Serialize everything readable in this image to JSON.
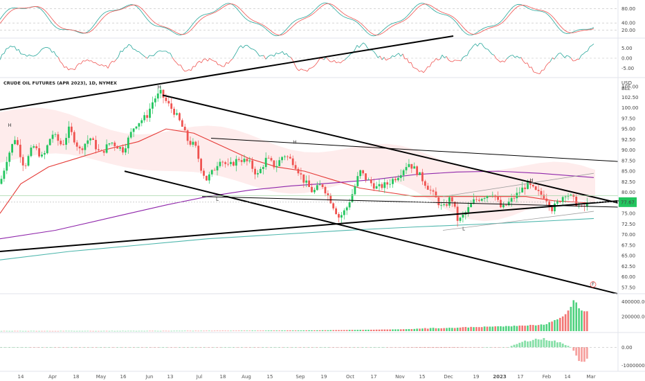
{
  "symbol_title": "CRUDE OIL FUTURES (APR 2023), 1D, NYMEX",
  "currency": "USD",
  "unit": "BLL",
  "current_price": "77.67",
  "marker_label": "F",
  "colors": {
    "up": "#26a69a",
    "up_candle": "#22c55e",
    "down": "#ef5350",
    "ma_fast": "#e53935",
    "ma_mid": "#8e24aa",
    "ma_slow": "#4db6ac",
    "trendline": "#000000",
    "cloud": "#fde2e2",
    "cloud_green": "#e3f5e6",
    "price_tag": "#22c55e"
  },
  "stoch_panel": {
    "ticks": [
      "80.00",
      "40.00",
      "20.00"
    ],
    "tick_values": [
      80,
      40,
      20
    ],
    "ylim": [
      0,
      100
    ]
  },
  "momentum_panel": {
    "ticks": [
      "5.00",
      "0.00",
      "-5.00"
    ],
    "tick_values": [
      5,
      0,
      -5
    ],
    "ylim": [
      -9,
      9
    ]
  },
  "volume_panel": {
    "ticks": [
      "400000.00",
      "200000.00"
    ],
    "tick_values": [
      400000,
      200000
    ],
    "ylim": [
      0,
      480000
    ]
  },
  "macd_panel": {
    "ticks": [
      "0.00",
      "-1000000.00"
    ],
    "tick_values": [
      0,
      -1000000
    ],
    "ylim": [
      -1250000,
      700000
    ]
  },
  "chart_data": {
    "type": "candlestick",
    "title": "CRUDE OIL FUTURES (APR 2023), 1D, NYMEX",
    "y_axis_ticks": [
      "105.00",
      "102.50",
      "100.00",
      "97.50",
      "95.00",
      "92.50",
      "90.00",
      "87.50",
      "85.00",
      "82.50",
      "80.00",
      "77.50",
      "75.00",
      "72.50",
      "70.00",
      "67.50",
      "65.00",
      "62.50",
      "60.00",
      "57.50"
    ],
    "y_tick_values": [
      105,
      102.5,
      100,
      97.5,
      95,
      92.5,
      90,
      87.5,
      85,
      82.5,
      80,
      77.5,
      75,
      72.5,
      70,
      67.5,
      65,
      62.5,
      60,
      57.5
    ],
    "ylim": [
      56,
      106.5
    ],
    "x_axis_labels": [
      "14",
      "Apr",
      "18",
      "May",
      "16",
      "Jun",
      "13",
      "Jul",
      "18",
      "Aug",
      "15",
      "Sep",
      "19",
      "Oct",
      "17",
      "Nov",
      "15",
      "Dec",
      "19",
      "2023",
      "17",
      "Feb",
      "14",
      "Mar"
    ],
    "x_label_bold": [
      false,
      false,
      false,
      false,
      false,
      false,
      false,
      false,
      false,
      false,
      false,
      false,
      false,
      false,
      false,
      false,
      false,
      false,
      false,
      true,
      false,
      false,
      false,
      false
    ],
    "price_path": [
      [
        0,
        82
      ],
      [
        10,
        88
      ],
      [
        22,
        93
      ],
      [
        35,
        86
      ],
      [
        48,
        91
      ],
      [
        62,
        88
      ],
      [
        75,
        94
      ],
      [
        90,
        91
      ],
      [
        100,
        95
      ],
      [
        115,
        90
      ],
      [
        130,
        93
      ],
      [
        145,
        89
      ],
      [
        160,
        92
      ],
      [
        178,
        90
      ],
      [
        195,
        96
      ],
      [
        212,
        98
      ],
      [
        222,
        102
      ],
      [
        232,
        103.5
      ],
      [
        242,
        101
      ],
      [
        252,
        99
      ],
      [
        262,
        96
      ],
      [
        272,
        92
      ],
      [
        282,
        91
      ],
      [
        290,
        86
      ],
      [
        298,
        83
      ],
      [
        308,
        85
      ],
      [
        318,
        88
      ],
      [
        330,
        86
      ],
      [
        345,
        88
      ],
      [
        360,
        87
      ],
      [
        372,
        84
      ],
      [
        385,
        88
      ],
      [
        398,
        86
      ],
      [
        410,
        89
      ],
      [
        425,
        87
      ],
      [
        438,
        83
      ],
      [
        452,
        80
      ],
      [
        465,
        82
      ],
      [
        478,
        78
      ],
      [
        490,
        74
      ],
      [
        500,
        76
      ],
      [
        510,
        80
      ],
      [
        520,
        85
      ],
      [
        530,
        83
      ],
      [
        545,
        81
      ],
      [
        560,
        82
      ],
      [
        575,
        84
      ],
      [
        590,
        87
      ],
      [
        602,
        85
      ],
      [
        615,
        82
      ],
      [
        628,
        79
      ],
      [
        640,
        76
      ],
      [
        652,
        79
      ],
      [
        662,
        73
      ],
      [
        672,
        75
      ],
      [
        685,
        78
      ],
      [
        698,
        79
      ],
      [
        712,
        80
      ],
      [
        725,
        76
      ],
      [
        738,
        78
      ],
      [
        750,
        80
      ],
      [
        762,
        82
      ],
      [
        775,
        80
      ],
      [
        788,
        79
      ],
      [
        798,
        76
      ],
      [
        808,
        78
      ],
      [
        818,
        80
      ],
      [
        830,
        78
      ],
      [
        840,
        76
      ],
      [
        852,
        77.7
      ]
    ],
    "series": [
      {
        "name": "",
        "type": "moving_average",
        "color": "#e53935",
        "points": [
          [
            0,
            75
          ],
          [
            30,
            82
          ],
          [
            70,
            86
          ],
          [
            110,
            88
          ],
          [
            150,
            90
          ],
          [
            200,
            92
          ],
          [
            240,
            95
          ],
          [
            280,
            94
          ],
          [
            320,
            91
          ],
          [
            360,
            88
          ],
          [
            400,
            86
          ],
          [
            440,
            85
          ],
          [
            480,
            83
          ],
          [
            520,
            81
          ],
          [
            560,
            80
          ],
          [
            600,
            79
          ],
          [
            640,
            79
          ],
          [
            680,
            79
          ],
          [
            720,
            79
          ],
          [
            760,
            79
          ],
          [
            800,
            78
          ],
          [
            850,
            77.5
          ]
        ]
      },
      {
        "name": "",
        "type": "moving_average",
        "color": "#8e24aa",
        "points": [
          [
            0,
            69
          ],
          [
            80,
            71
          ],
          [
            160,
            74
          ],
          [
            240,
            77
          ],
          [
            300,
            79
          ],
          [
            360,
            80.5
          ],
          [
            420,
            81.5
          ],
          [
            480,
            82.2
          ],
          [
            540,
            83
          ],
          [
            600,
            84.2
          ],
          [
            660,
            84.8
          ],
          [
            720,
            85
          ],
          [
            780,
            84.5
          ],
          [
            858,
            83.5
          ]
        ]
      },
      {
        "name": "",
        "type": "moving_average",
        "color": "#4db6ac",
        "points": [
          [
            0,
            64
          ],
          [
            100,
            66
          ],
          [
            200,
            67.5
          ],
          [
            300,
            69
          ],
          [
            400,
            70
          ],
          [
            500,
            71
          ],
          [
            600,
            71.8
          ],
          [
            700,
            72.5
          ],
          [
            800,
            73.3
          ],
          [
            858,
            73.8
          ]
        ]
      }
    ],
    "trendlines": [
      {
        "from": [
          0,
          99.5
        ],
        "to": [
          655,
          117
        ]
      },
      {
        "from": [
          235,
          103
        ],
        "to": [
          893,
          77.5
        ]
      },
      {
        "from": [
          180,
          85
        ],
        "to": [
          892,
          56
        ]
      },
      {
        "from": [
          0,
          66
        ],
        "to": [
          895,
          78
        ]
      },
      {
        "from": [
          305,
          92.8
        ],
        "to": [
          893,
          87.3
        ]
      },
      {
        "from": [
          292,
          79
        ],
        "to": [
          893,
          76.5
        ]
      }
    ],
    "annotations": [
      "H",
      "H",
      "H",
      "H",
      "L",
      "L"
    ],
    "volume_values_recent": [
      120000,
      130000,
      150000,
      160000,
      180000,
      200000,
      230000,
      280000,
      330000,
      420000,
      390000,
      310000,
      280000,
      270000
    ]
  }
}
